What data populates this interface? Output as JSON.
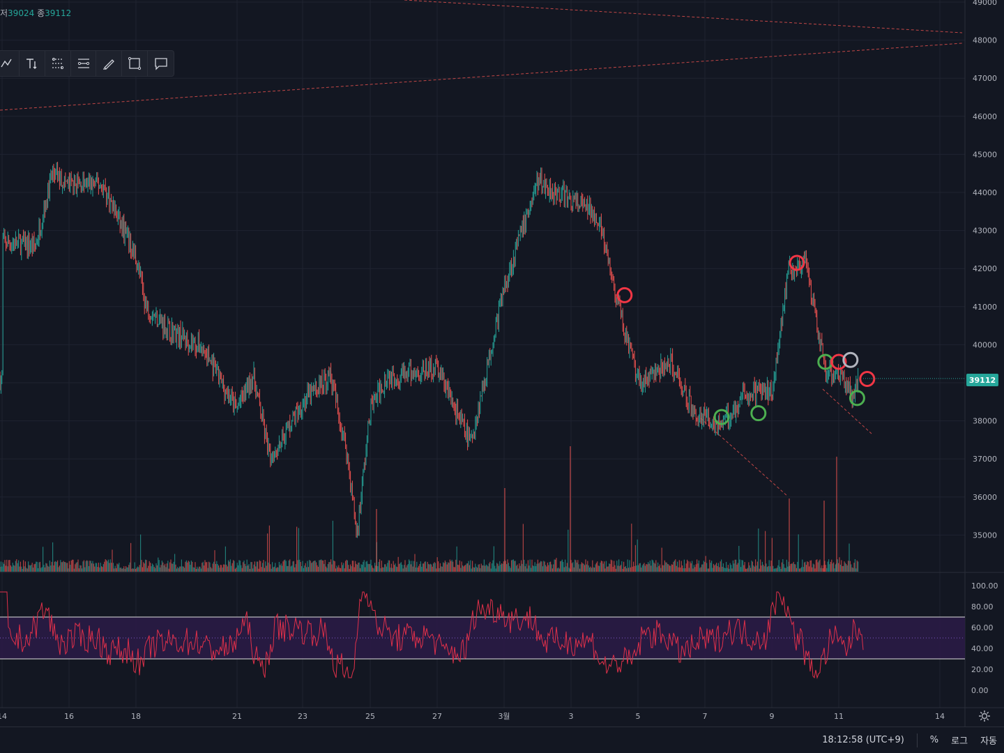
{
  "ohlc": {
    "low_prefix": "저",
    "low_value": "39024",
    "close_prefix": "종",
    "close_value": "39112"
  },
  "toolbar": {
    "tools": [
      {
        "icon": "pattern-icon"
      },
      {
        "icon": "text-tool-icon"
      },
      {
        "icon": "fib-channel-icon"
      },
      {
        "icon": "fib-retracement-icon"
      },
      {
        "icon": "brush-icon"
      },
      {
        "icon": "rectangle-icon"
      },
      {
        "icon": "comment-icon"
      }
    ]
  },
  "price_axis": {
    "labels": [
      "49000",
      "48000",
      "47000",
      "46000",
      "45000",
      "44000",
      "43000",
      "42000",
      "41000",
      "40000",
      "39000",
      "38000",
      "37000",
      "36000",
      "35000"
    ],
    "current_price": "39112"
  },
  "rsi_axis": {
    "labels": [
      "100.00",
      "80.00",
      "60.00",
      "40.00",
      "20.00",
      "0.00"
    ]
  },
  "time_axis": {
    "labels": [
      "14",
      "16",
      "18",
      "21",
      "23",
      "25",
      "27",
      "3월",
      "3",
      "5",
      "7",
      "9",
      "11",
      "14"
    ]
  },
  "status": {
    "clock": "18:12:58 (UTC+9)",
    "percent": "%",
    "log": "로그",
    "auto": "자동"
  },
  "colors": {
    "background": "#131722",
    "up": "#26a69a",
    "down": "#ef5350",
    "rsi_line": "#e0304a",
    "rsi_band": "#2a1b45",
    "grid": "#1f2330",
    "trendline": "#ef5350",
    "marker_red": "#f23645",
    "marker_green": "#4caf50",
    "marker_gray": "#b2b5be"
  },
  "chart_data": {
    "type": "candlestick",
    "price_range": [
      34200,
      49000
    ],
    "close_path": [
      {
        "x": "14",
        "y": 42700
      },
      {
        "x": "15",
        "y": 42600
      },
      {
        "x": "15.5",
        "y": 44500
      },
      {
        "x": "16",
        "y": 44200
      },
      {
        "x": "17",
        "y": 44200
      },
      {
        "x": "18",
        "y": 42300
      },
      {
        "x": "18.3",
        "y": 41000
      },
      {
        "x": "19",
        "y": 40400
      },
      {
        "x": "20",
        "y": 39900
      },
      {
        "x": "21",
        "y": 38300
      },
      {
        "x": "21.5",
        "y": 39200
      },
      {
        "x": "22",
        "y": 37000
      },
      {
        "x": "23",
        "y": 38500
      },
      {
        "x": "23.8",
        "y": 39200
      },
      {
        "x": "24.3",
        "y": 37200
      },
      {
        "x": "24.6",
        "y": 35000
      },
      {
        "x": "25",
        "y": 38300
      },
      {
        "x": "25.5",
        "y": 39200
      },
      {
        "x": "26",
        "y": 39200
      },
      {
        "x": "27",
        "y": 39400
      },
      {
        "x": "28",
        "y": 37400
      },
      {
        "x": "3월",
        "y": 41500
      },
      {
        "x": "2",
        "y": 44300
      },
      {
        "x": "3",
        "y": 43800
      },
      {
        "x": "3.8",
        "y": 43400
      },
      {
        "x": "4.3",
        "y": 41400
      },
      {
        "x": "5",
        "y": 39000
      },
      {
        "x": "6",
        "y": 39500
      },
      {
        "x": "6.7",
        "y": 38200
      },
      {
        "x": "7.5",
        "y": 37900
      },
      {
        "x": "8.2",
        "y": 38700
      },
      {
        "x": "9",
        "y": 38800
      },
      {
        "x": "9.5",
        "y": 42000
      },
      {
        "x": "10",
        "y": 42100
      },
      {
        "x": "10.6",
        "y": 39300
      },
      {
        "x": "11",
        "y": 39300
      },
      {
        "x": "11.4",
        "y": 38700
      },
      {
        "x": "11.6",
        "y": 39112
      }
    ],
    "rsi_levels": {
      "upper": 70,
      "lower": 30,
      "mid": 50
    },
    "markers": [
      {
        "x": "4.6",
        "y": 41300,
        "color": "red"
      },
      {
        "x": "7.5",
        "y": 38100,
        "color": "green"
      },
      {
        "x": "8.6",
        "y": 38200,
        "color": "green"
      },
      {
        "x": "9.75",
        "y": 42150,
        "color": "red"
      },
      {
        "x": "10.6",
        "y": 39550,
        "color": "green"
      },
      {
        "x": "11",
        "y": 39550,
        "color": "red"
      },
      {
        "x": "11.35",
        "y": 39600,
        "color": "gray"
      },
      {
        "x": "11.55",
        "y": 38600,
        "color": "green"
      },
      {
        "x": "11.85",
        "y": 39100,
        "color": "red"
      }
    ]
  }
}
